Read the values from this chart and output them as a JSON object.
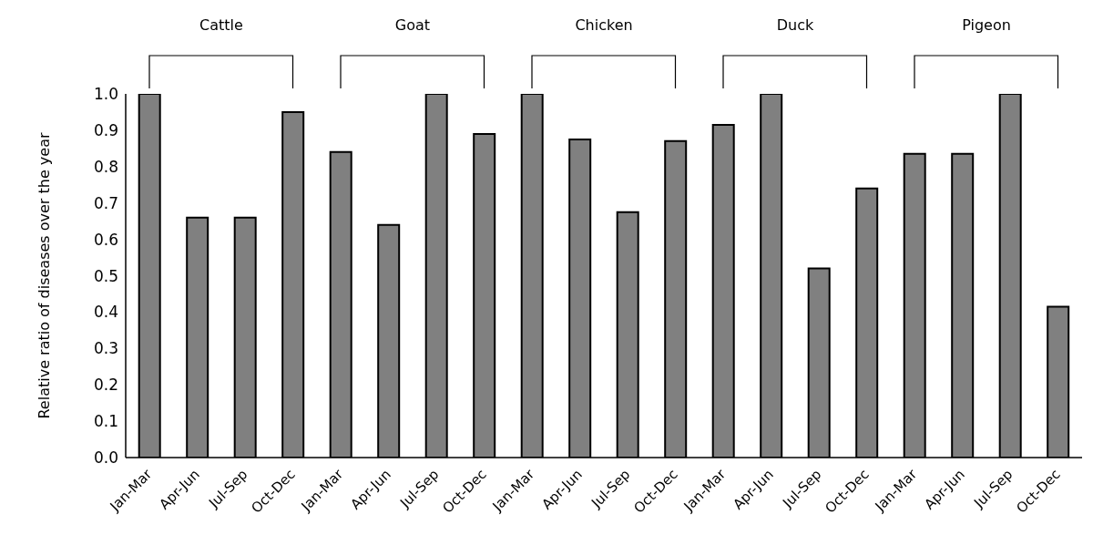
{
  "chart_data": {
    "type": "bar",
    "ylabel": "Relative ratio of diseases over the year",
    "categories": [
      "Jan-Mar",
      "Apr-Jun",
      "Jul-Sep",
      "Oct-Dec",
      "Jan-Mar",
      "Apr-Jun",
      "Jul-Sep",
      "Oct-Dec",
      "Jan-Mar",
      "Apr-Jun",
      "Jul-Sep",
      "Oct-Dec",
      "Jan-Mar",
      "Apr-Jun",
      "Jul-Sep",
      "Oct-Dec",
      "Jan-Mar",
      "Apr-Jun",
      "Jul-Sep",
      "Oct-Dec"
    ],
    "values": [
      1.0,
      0.66,
      0.66,
      0.95,
      0.84,
      0.64,
      1.0,
      0.89,
      1.0,
      0.875,
      0.675,
      0.87,
      0.915,
      1.0,
      0.52,
      0.74,
      0.835,
      0.835,
      1.0,
      0.415
    ],
    "color": "#808080",
    "ylim": [
      0,
      1
    ],
    "yticks": [
      {
        "value": 0,
        "label": "0.0"
      },
      0.1,
      0.2,
      0.3,
      0.4,
      0.5,
      0.6,
      0.7,
      0.8,
      0.9,
      {
        "value": 1,
        "label": "1.0"
      }
    ],
    "annotations": [
      "Cattle",
      "Goat",
      "Chicken",
      "Duck",
      "Pigeon"
    ]
  }
}
